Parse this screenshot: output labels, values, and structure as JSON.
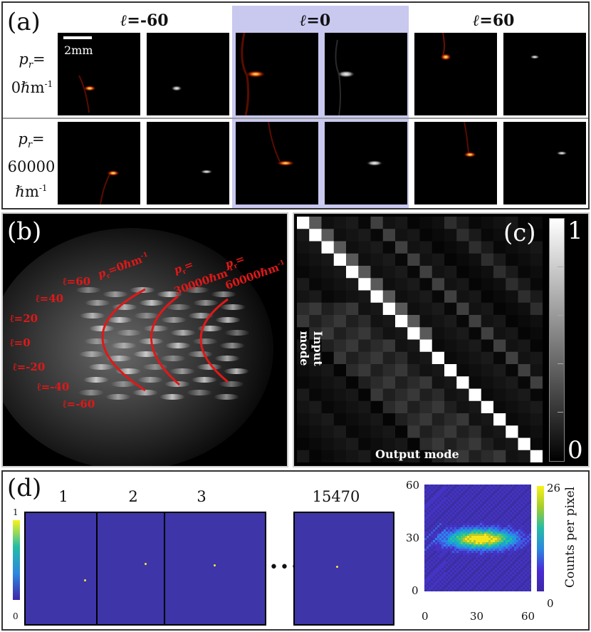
{
  "panel_a": {
    "label": "(a)",
    "column_headers": [
      {
        "ell": "ℓ",
        "value": "=-60"
      },
      {
        "ell": "ℓ",
        "value": "=0"
      },
      {
        "ell": "ℓ",
        "value": "=60"
      }
    ],
    "scale_bar": "2mm",
    "rows": [
      {
        "line1": "p",
        "sub": "r",
        "line1b": "=",
        "line2": "0ℏm",
        "sup2": "-1",
        "line3": ""
      },
      {
        "line1": "p",
        "sub": "r",
        "line1b": "=",
        "line2": "60000",
        "line3": "ℏm",
        "sup3": "-1"
      }
    ],
    "highlight_color": "#c9c8ef"
  },
  "panel_b": {
    "label": "(b)",
    "ell_labels": [
      "ℓ=60",
      "ℓ=40",
      "ℓ=20",
      "ℓ=0",
      "ℓ=-20",
      "ℓ=-40",
      "ℓ=-60"
    ],
    "arc_labels": [
      {
        "p": "p",
        "sub": "r",
        "rest": "=0ℏm",
        "sup": "-1"
      },
      {
        "p": "p",
        "sub": "r",
        "rest": "=",
        "line2": "30000ℏm",
        "sup": "-1"
      },
      {
        "p": "p",
        "sub": "r",
        "rest": "=",
        "line2": "60000ℏm",
        "sup": "-1"
      }
    ],
    "curve_color": "#e01818"
  },
  "panel_c": {
    "label": "(c)",
    "xlabel": "Output mode",
    "ylabel": "Input mode",
    "colorbar_max": "1",
    "colorbar_min": "0"
  },
  "panel_d": {
    "label": "(d)",
    "frame_labels": [
      "1",
      "2",
      "3",
      "15470"
    ],
    "ellipsis": "•••",
    "left_colorbar_max": "1",
    "left_colorbar_min": "0",
    "frame_color": "#3d35a8",
    "dot_color": "#ffea3a",
    "histogram": {
      "x_ticks": [
        "0",
        "30",
        "60"
      ],
      "y_ticks": [
        "60",
        "30",
        "0"
      ],
      "colorbar_max": "26",
      "colorbar_min": "0",
      "colorbar_label": "Counts per pixel"
    }
  }
}
